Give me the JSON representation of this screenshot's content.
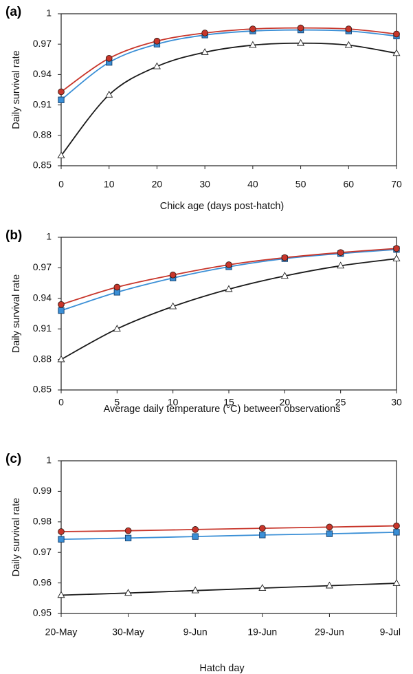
{
  "colors": {
    "red": "#c8362b",
    "blue": "#3a8fd6",
    "black": "#1a1a1a"
  },
  "chart_data": [
    {
      "type": "line",
      "panel_label": "(a)",
      "xlabel": "Chick age (days post-hatch)",
      "ylabel": "Daily survival rate",
      "x": [
        0,
        10,
        20,
        30,
        40,
        50,
        60,
        70
      ],
      "xlim": [
        0,
        70
      ],
      "xticks": [
        "0",
        "10",
        "20",
        "30",
        "40",
        "50",
        "60",
        "70"
      ],
      "ylim": [
        0.85,
        1
      ],
      "yticks": [
        "0.85",
        "0.88",
        "0.91",
        "0.94",
        "0.97",
        "1"
      ],
      "grid": false,
      "series": [
        {
          "marker": "circle",
          "color": "red",
          "values": [
            0.923,
            0.956,
            0.973,
            0.981,
            0.985,
            0.986,
            0.985,
            0.98
          ]
        },
        {
          "marker": "square",
          "color": "blue",
          "values": [
            0.915,
            0.952,
            0.97,
            0.979,
            0.983,
            0.984,
            0.983,
            0.978
          ]
        },
        {
          "marker": "triangle",
          "color": "black",
          "values": [
            0.86,
            0.92,
            0.948,
            0.962,
            0.969,
            0.971,
            0.969,
            0.961
          ]
        }
      ]
    },
    {
      "type": "line",
      "panel_label": "(b)",
      "xlabel": "Average daily temperature (°C) between observations",
      "ylabel": "Daily survival rate",
      "x": [
        0,
        5,
        10,
        15,
        20,
        25,
        30
      ],
      "xlim": [
        0,
        30
      ],
      "xticks": [
        "0",
        "5",
        "10",
        "15",
        "20",
        "25",
        "30"
      ],
      "ylim": [
        0.85,
        1
      ],
      "yticks": [
        "0.85",
        "0.88",
        "0.91",
        "0.94",
        "0.97",
        "1"
      ],
      "grid": false,
      "series": [
        {
          "marker": "circle",
          "color": "red",
          "values": [
            0.934,
            0.951,
            0.963,
            0.973,
            0.98,
            0.985,
            0.989
          ]
        },
        {
          "marker": "square",
          "color": "blue",
          "values": [
            0.928,
            0.946,
            0.96,
            0.971,
            0.979,
            0.984,
            0.988
          ]
        },
        {
          "marker": "triangle",
          "color": "black",
          "values": [
            0.88,
            0.91,
            0.932,
            0.949,
            0.962,
            0.972,
            0.979
          ]
        }
      ]
    },
    {
      "type": "line",
      "panel_label": "(c)",
      "xlabel": "Hatch day",
      "ylabel": "Daily survival rate",
      "x": [
        "20-May",
        "30-May",
        "9-Jun",
        "19-Jun",
        "29-Jun",
        "9-Jul"
      ],
      "xticks": [
        "20-May",
        "30-May",
        "9-Jun",
        "19-Jun",
        "29-Jun",
        "9-Jul"
      ],
      "ylim": [
        0.95,
        1
      ],
      "yticks": [
        "0.95",
        "0.96",
        "0.97",
        "0.98",
        "0.99",
        "1"
      ],
      "grid": false,
      "series": [
        {
          "marker": "circle",
          "color": "red",
          "values": [
            0.9768,
            0.9771,
            0.9775,
            0.9779,
            0.9783,
            0.9787
          ]
        },
        {
          "marker": "square",
          "color": "blue",
          "values": [
            0.9743,
            0.9747,
            0.9752,
            0.9757,
            0.9761,
            0.9766
          ]
        },
        {
          "marker": "triangle",
          "color": "black",
          "values": [
            0.956,
            0.9567,
            0.9575,
            0.9583,
            0.9591,
            0.9599
          ]
        }
      ]
    }
  ]
}
